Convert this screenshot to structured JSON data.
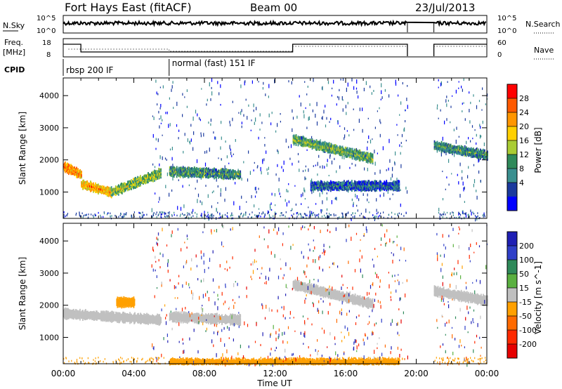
{
  "header": {
    "station": "Fort Hays East (fitACF)",
    "beam": "Beam 00",
    "date": "23/Jul/2013"
  },
  "nsky_panel": {
    "left_label": "N.Sky",
    "right_label": "N.Search",
    "left_ticks": [
      "10^5",
      "10^0"
    ],
    "right_ticks": [
      "10^5",
      "10^0"
    ]
  },
  "freq_panel": {
    "left_label_1": "Freq.",
    "left_label_2": "[MHz]",
    "right_label": "Nave",
    "left_ticks": [
      "18",
      "8"
    ],
    "right_ticks": [
      "60",
      "0"
    ]
  },
  "cpid": {
    "label": "CPID",
    "segments": [
      {
        "name": "rbsp 200 IF",
        "start_hour": 0.0,
        "end_hour": 6.0
      },
      {
        "name": "normal (fast) 151 IF",
        "start_hour": 6.0,
        "end_hour": 24.0
      }
    ]
  },
  "power_colorbar": {
    "label": "Power [dB]",
    "ticks": [
      "28",
      "24",
      "20",
      "16",
      "12",
      "8",
      "4"
    ],
    "colors": [
      "#ff0000",
      "#ff5a00",
      "#ff9600",
      "#ffd000",
      "#aacc33",
      "#2f8a5a",
      "#3a8f8f",
      "#1b3a9e",
      "#0000ff"
    ]
  },
  "velocity_colorbar": {
    "label": "Velocity [m s^-1]",
    "ticks": [
      "200",
      "100",
      "50",
      "15",
      "-15",
      "-50",
      "-100",
      "-200"
    ],
    "colors": [
      "#1f1fb4",
      "#2f3fc8",
      "#2f8a5a",
      "#5ab040",
      "#c0c0c0",
      "#ffa000",
      "#ff6a00",
      "#ff2a00",
      "#e60000"
    ]
  },
  "chart_data": [
    {
      "type": "heatmap",
      "title": "Power",
      "xlabel": "Time UT",
      "ylabel": "Slant Range [km]",
      "xlim": [
        0,
        24
      ],
      "ylim": [
        180,
        4550
      ],
      "yticks": [
        "1000",
        "2000",
        "3000",
        "4000"
      ],
      "xticks": [
        "00:00",
        "04:00",
        "08:00",
        "12:00",
        "16:00",
        "20:00",
        "00:00"
      ],
      "data_gap_hours": [
        19.5,
        21.0
      ],
      "echo_features": [
        {
          "start_hour": 0.0,
          "end_hour": 1.0,
          "range_km_start": 1850,
          "range_km_end": 1600,
          "power_db": 22
        },
        {
          "start_hour": 1.0,
          "end_hour": 2.7,
          "range_km_start": 1300,
          "range_km_end": 1050,
          "power_db": 20
        },
        {
          "start_hour": 2.7,
          "end_hour": 5.5,
          "range_km_start": 1050,
          "range_km_end": 1650,
          "power_db": 14
        },
        {
          "start_hour": 6.0,
          "end_hour": 10.0,
          "range_km_start": 1700,
          "range_km_end": 1600,
          "power_db": 10
        },
        {
          "start_hour": 13.0,
          "end_hour": 17.5,
          "range_km_start": 2700,
          "range_km_end": 2100,
          "power_db": 12
        },
        {
          "start_hour": 14.0,
          "end_hour": 19.0,
          "range_km_start": 1250,
          "range_km_end": 1250,
          "power_db": 6
        },
        {
          "start_hour": 21.0,
          "end_hour": 24.0,
          "range_km_start": 2500,
          "range_km_end": 2200,
          "power_db": 10
        }
      ]
    },
    {
      "type": "heatmap",
      "title": "Velocity",
      "xlabel": "Time UT",
      "ylabel": "Slant Range [km]",
      "xlim": [
        0,
        24
      ],
      "ylim": [
        180,
        4550
      ],
      "yticks": [
        "1000",
        "2000",
        "3000",
        "4000"
      ],
      "xticks": [
        "00:00",
        "04:00",
        "08:00",
        "12:00",
        "16:00",
        "20:00",
        "00:00"
      ],
      "data_gap_hours": [
        19.5,
        21.0
      ],
      "echo_features": [
        {
          "start_hour": 0.0,
          "end_hour": 5.5,
          "range_km_start": 1800,
          "range_km_end": 1600,
          "velocity_ms": 0
        },
        {
          "start_hour": 3.0,
          "end_hour": 4.0,
          "range_km_start": 2150,
          "range_km_end": 2150,
          "velocity_ms": -40
        },
        {
          "start_hour": 6.0,
          "end_hour": 10.0,
          "range_km_start": 1700,
          "range_km_end": 1600,
          "velocity_ms": 0
        },
        {
          "start_hour": 13.0,
          "end_hour": 17.5,
          "range_km_start": 2700,
          "range_km_end": 2100,
          "velocity_ms": 0
        },
        {
          "start_hour": 21.0,
          "end_hour": 24.0,
          "range_km_start": 2500,
          "range_km_end": 2200,
          "velocity_ms": 0
        },
        {
          "start_hour": 6.0,
          "end_hour": 19.0,
          "range_km_start": 250,
          "range_km_end": 250,
          "velocity_ms": -40
        }
      ]
    }
  ]
}
